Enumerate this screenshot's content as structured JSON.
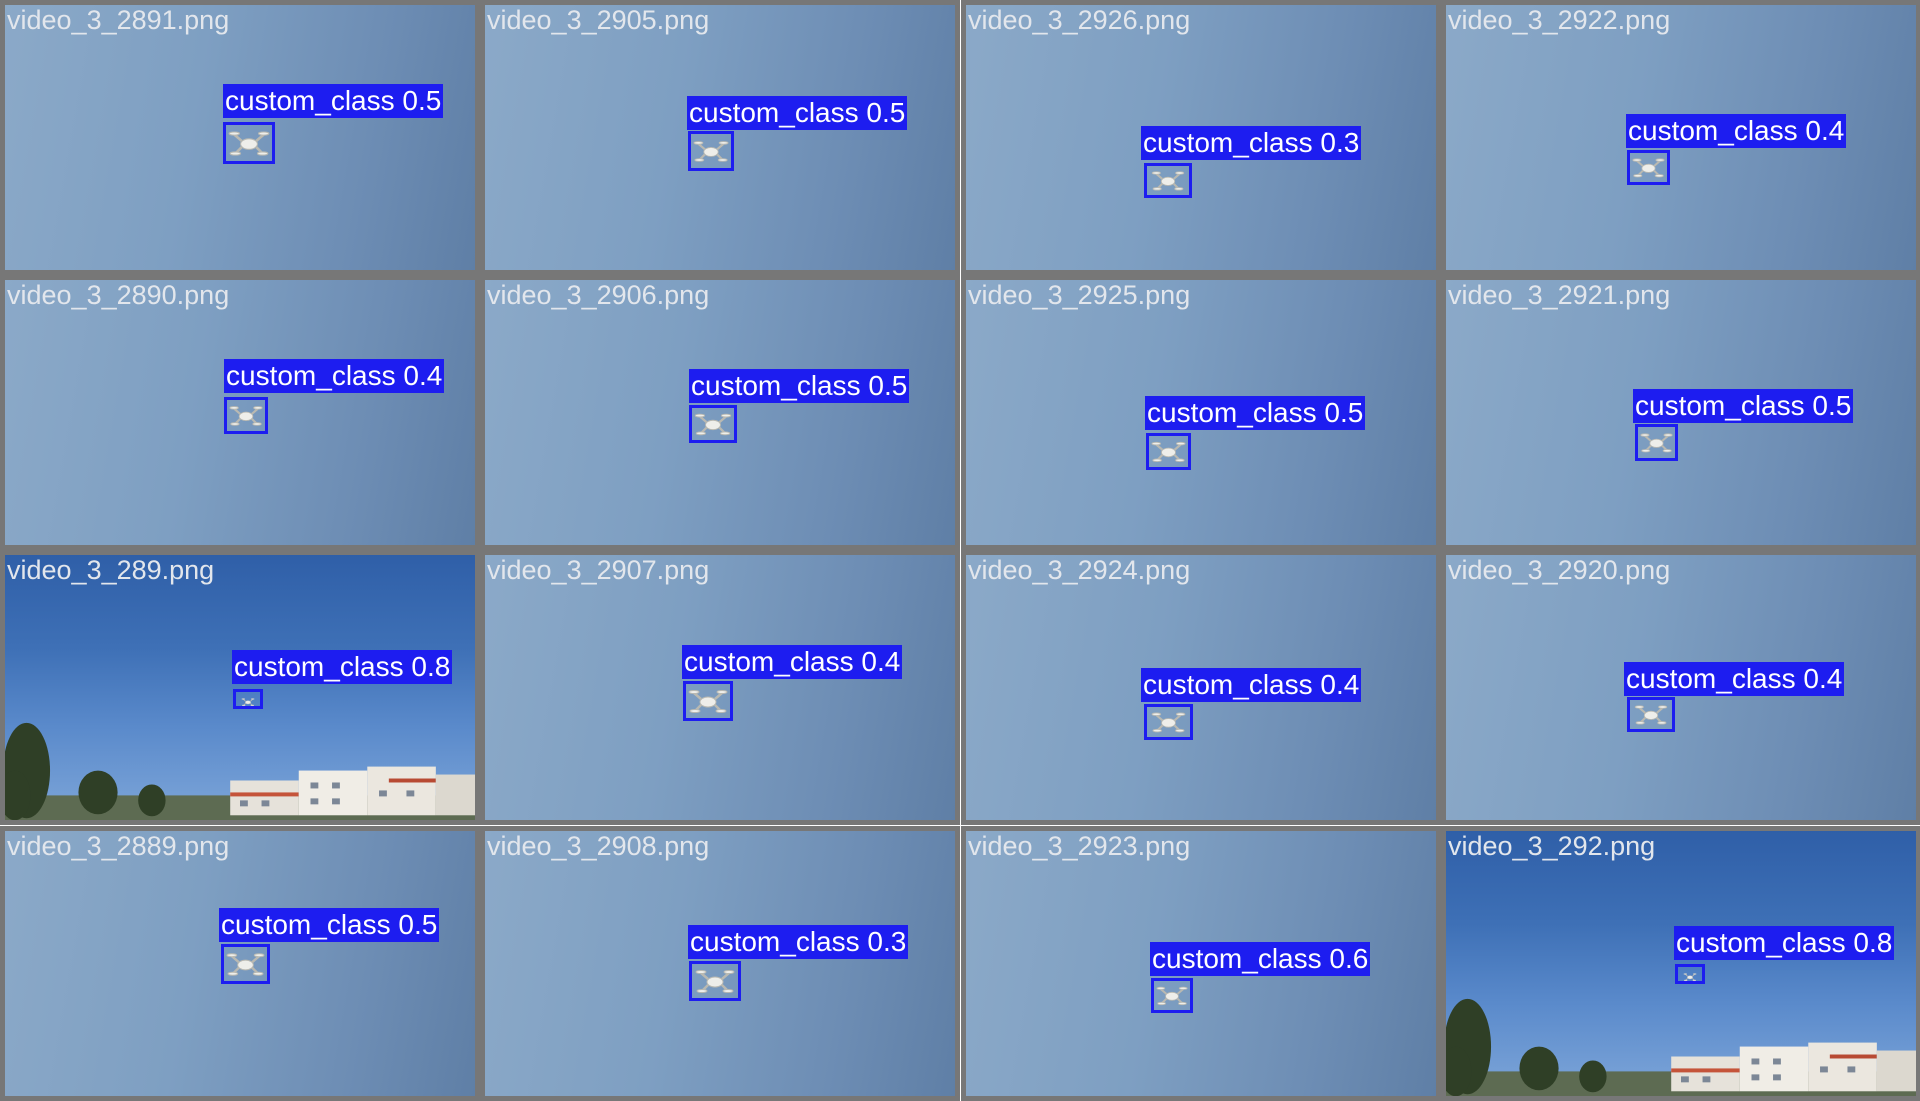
{
  "tiles": [
    {
      "file": "video_3_2891.png",
      "label": "custom_class 0.5",
      "scene": "sky",
      "object": "drone-icon"
    },
    {
      "file": "video_3_2905.png",
      "label": "custom_class 0.5",
      "scene": "sky",
      "object": "drone-icon"
    },
    {
      "file": "video_3_2926.png",
      "label": "custom_class 0.3",
      "scene": "sky",
      "object": "drone-icon"
    },
    {
      "file": "video_3_2922.png",
      "label": "custom_class 0.4",
      "scene": "sky",
      "object": "drone-icon"
    },
    {
      "file": "video_3_2890.png",
      "label": "custom_class 0.4",
      "scene": "sky",
      "object": "drone-icon"
    },
    {
      "file": "video_3_2906.png",
      "label": "custom_class 0.5",
      "scene": "sky",
      "object": "drone-icon"
    },
    {
      "file": "video_3_2925.png",
      "label": "custom_class 0.5",
      "scene": "sky",
      "object": "drone-icon"
    },
    {
      "file": "video_3_2921.png",
      "label": "custom_class 0.5",
      "scene": "sky",
      "object": "drone-icon"
    },
    {
      "file": "video_3_289.png",
      "label": "custom_class 0.8",
      "scene": "sky-with-buildings",
      "object": "drone-icon"
    },
    {
      "file": "video_3_2907.png",
      "label": "custom_class 0.4",
      "scene": "sky",
      "object": "drone-icon"
    },
    {
      "file": "video_3_2924.png",
      "label": "custom_class 0.4",
      "scene": "sky",
      "object": "drone-icon"
    },
    {
      "file": "video_3_2920.png",
      "label": "custom_class 0.4",
      "scene": "sky",
      "object": "drone-icon"
    },
    {
      "file": "video_3_2889.png",
      "label": "custom_class 0.5",
      "scene": "sky",
      "object": "drone-icon"
    },
    {
      "file": "video_3_2908.png",
      "label": "custom_class 0.3",
      "scene": "sky",
      "object": "drone-icon"
    },
    {
      "file": "video_3_2923.png",
      "label": "custom_class 0.6",
      "scene": "sky",
      "object": "drone-icon"
    },
    {
      "file": "video_3_292.png",
      "label": "custom_class 0.8",
      "scene": "sky-with-buildings",
      "object": "drone-icon"
    }
  ],
  "colors": {
    "border": "#777777",
    "detection": "#1d1df0",
    "filename_text": "#e2e6ec"
  }
}
